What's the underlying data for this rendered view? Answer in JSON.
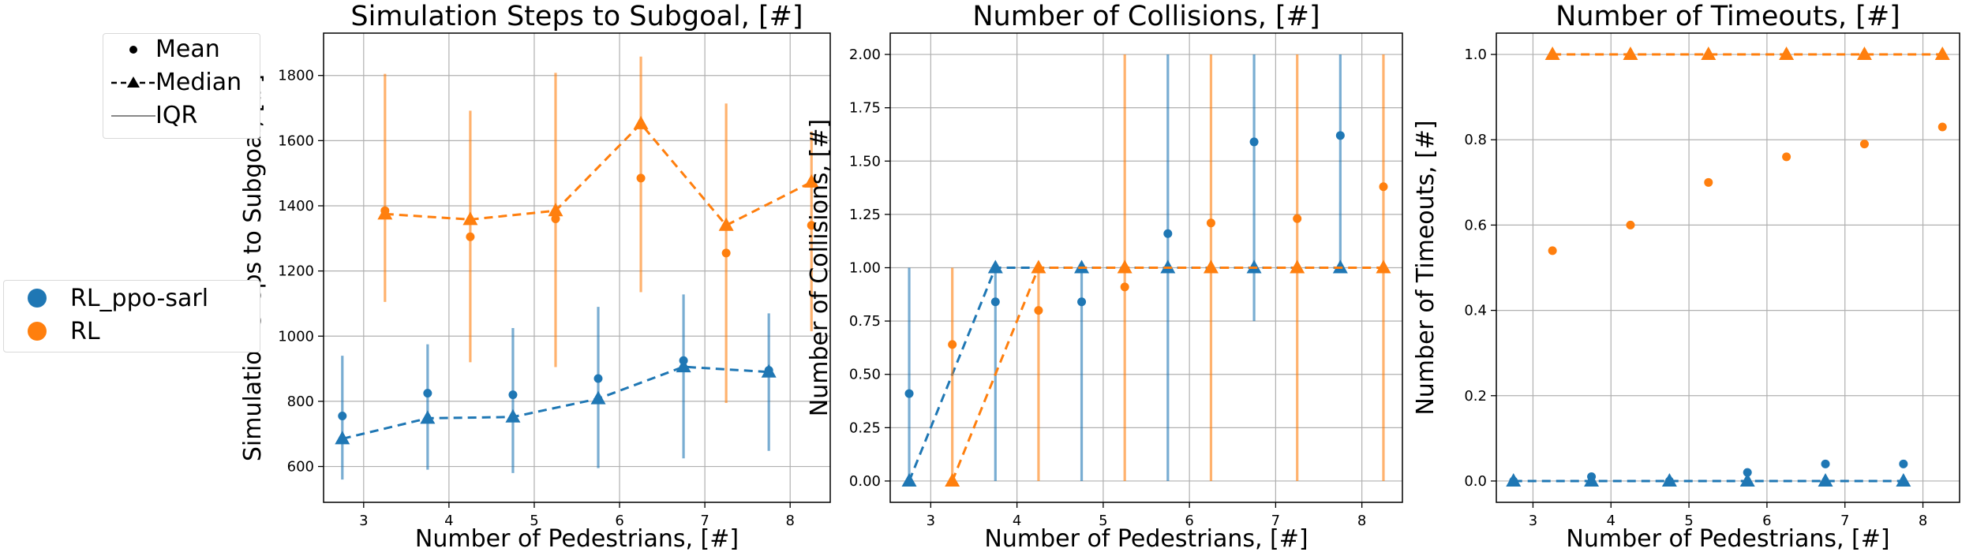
{
  "colors": {
    "RL_ppo-sarl": "#1f77b4",
    "RL": "#ff7f0e",
    "grid": "#b0b0b0",
    "axis": "#000000"
  },
  "legend_stats": {
    "items": [
      {
        "label": "Mean",
        "icon": "dot-icon"
      },
      {
        "label": "Median",
        "icon": "dashed-triangle-icon"
      },
      {
        "label": "IQR",
        "icon": "line-icon"
      }
    ]
  },
  "legend_series": {
    "items": [
      {
        "label": "RL_ppo-sarl",
        "color": "#1f77b4"
      },
      {
        "label": "RL",
        "color": "#ff7f0e"
      }
    ]
  },
  "chart_data": [
    {
      "type": "scatter",
      "title": "Simulation Steps to Subgoal, [#]",
      "xlabel": "Number of Pedestrians, [#]",
      "ylabel": "Simulation Steps to Subgoal, [#]",
      "xlim": [
        2.53,
        8.47
      ],
      "ylim": [
        490,
        1930
      ],
      "xticks": [
        3,
        4,
        5,
        6,
        7,
        8
      ],
      "yticks": [
        600,
        800,
        1000,
        1200,
        1400,
        1600,
        1800
      ],
      "ytick_labels": [
        "600",
        "800",
        "1000",
        "1200",
        "1400",
        "1600",
        "1800"
      ],
      "grid": true,
      "series": [
        {
          "name": "RL_ppo-sarl",
          "x": [
            2.75,
            3.75,
            4.75,
            5.75,
            6.75,
            7.75
          ],
          "mean": [
            755,
            825,
            820,
            870,
            925,
            895
          ],
          "median": [
            685,
            748,
            752,
            808,
            906,
            890
          ],
          "iqr_low": [
            560,
            590,
            580,
            595,
            625,
            648
          ],
          "iqr_high": [
            940,
            975,
            1025,
            1090,
            1128,
            1070
          ]
        },
        {
          "name": "RL",
          "x": [
            3.25,
            4.25,
            5.25,
            6.25,
            7.25,
            8.25
          ],
          "mean": [
            1385,
            1305,
            1360,
            1485,
            1255,
            1340
          ],
          "median": [
            1375,
            1358,
            1385,
            1652,
            1340,
            1473
          ],
          "iqr_low": [
            1105,
            920,
            905,
            1135,
            795,
            1015
          ],
          "iqr_high": [
            1805,
            1692,
            1808,
            1858,
            1714,
            1628
          ]
        }
      ]
    },
    {
      "type": "scatter",
      "title": "Number of Collisions, [#]",
      "xlabel": "Number of Pedestrians, [#]",
      "ylabel": "Number of Collisions, [#]",
      "xlim": [
        2.53,
        8.47
      ],
      "ylim": [
        -0.1,
        2.1
      ],
      "xticks": [
        3,
        4,
        5,
        6,
        7,
        8
      ],
      "yticks": [
        0,
        0.25,
        0.5,
        0.75,
        1,
        1.25,
        1.5,
        1.75,
        2
      ],
      "ytick_labels": [
        "0.00",
        "0.25",
        "0.50",
        "0.75",
        "1.00",
        "1.25",
        "1.50",
        "1.75",
        "2.00"
      ],
      "grid": true,
      "series": [
        {
          "name": "RL_ppo-sarl",
          "x": [
            2.75,
            3.75,
            4.75,
            5.75,
            6.75,
            7.75
          ],
          "mean": [
            0.41,
            0.84,
            0.84,
            1.16,
            1.59,
            1.62
          ],
          "median": [
            0,
            1,
            1,
            1,
            1,
            1
          ],
          "iqr_low": [
            0,
            0,
            0,
            0,
            0.75,
            1
          ],
          "iqr_high": [
            1,
            1,
            1,
            2,
            2,
            2
          ]
        },
        {
          "name": "RL",
          "x": [
            3.25,
            4.25,
            5.25,
            6.25,
            7.25,
            8.25
          ],
          "mean": [
            0.64,
            0.8,
            0.91,
            1.21,
            1.23,
            1.38
          ],
          "median": [
            0,
            1,
            1,
            1,
            1,
            1
          ],
          "iqr_low": [
            0,
            0,
            0,
            0,
            0,
            0
          ],
          "iqr_high": [
            1,
            1,
            2,
            2,
            2,
            2
          ]
        }
      ]
    },
    {
      "type": "scatter",
      "title": "Number of Timeouts, [#]",
      "xlabel": "Number of Pedestrians, [#]",
      "ylabel": "Number of Timeouts, [#]",
      "xlim": [
        2.53,
        8.47
      ],
      "ylim": [
        -0.05,
        1.05
      ],
      "xticks": [
        3,
        4,
        5,
        6,
        7,
        8
      ],
      "yticks": [
        0,
        0.2,
        0.4,
        0.6,
        0.8,
        1
      ],
      "ytick_labels": [
        "0.0",
        "0.2",
        "0.4",
        "0.6",
        "0.8",
        "1.0"
      ],
      "grid": true,
      "series": [
        {
          "name": "RL_ppo-sarl",
          "x": [
            2.75,
            3.75,
            4.75,
            5.75,
            6.75,
            7.75
          ],
          "mean": [
            0,
            0.01,
            0,
            0.02,
            0.04,
            0.04
          ],
          "median": [
            0,
            0,
            0,
            0,
            0,
            0
          ],
          "iqr_low": [
            0,
            0,
            0,
            0,
            0,
            0
          ],
          "iqr_high": [
            0,
            0,
            0,
            0,
            0,
            0
          ]
        },
        {
          "name": "RL",
          "x": [
            3.25,
            4.25,
            5.25,
            6.25,
            7.25,
            8.25
          ],
          "mean": [
            0.54,
            0.6,
            0.7,
            0.76,
            0.79,
            0.83
          ],
          "median": [
            1,
            1,
            1,
            1,
            1,
            1
          ],
          "iqr_low": [
            1,
            1,
            1,
            1,
            1,
            1
          ],
          "iqr_high": [
            1,
            1,
            1,
            1,
            1,
            1
          ]
        }
      ]
    }
  ]
}
